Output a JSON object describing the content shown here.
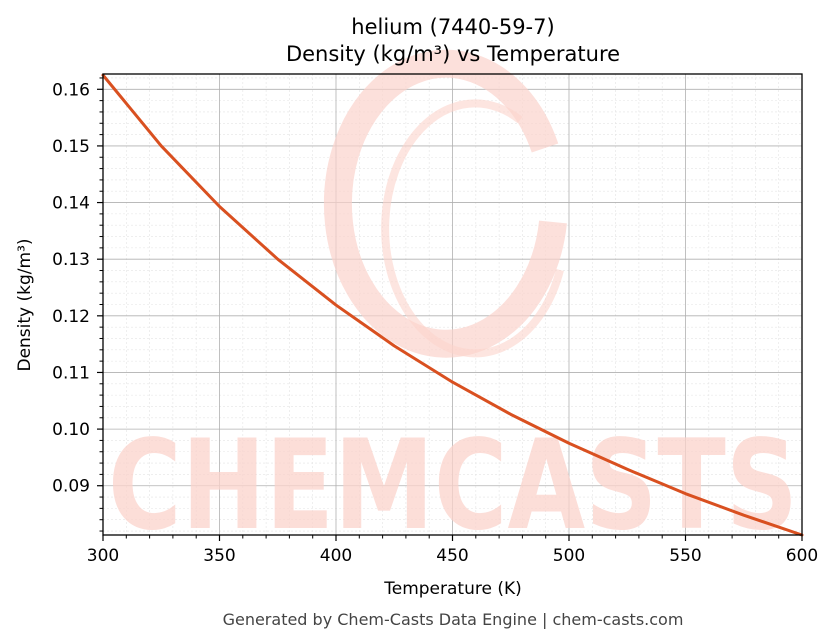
{
  "chart_data": {
    "type": "line",
    "title": "helium (7440-59-7)",
    "subtitle": "Density (kg/m³) vs Temperature",
    "xlabel": "Temperature (K)",
    "ylabel": "Density (kg/m³)",
    "xlim": [
      300,
      600
    ],
    "ylim": [
      0.0813,
      0.1627
    ],
    "x_ticks": [
      "300",
      "350",
      "400",
      "450",
      "500",
      "550",
      "600"
    ],
    "y_ticks": [
      "0.09",
      "0.10",
      "0.11",
      "0.12",
      "0.13",
      "0.14",
      "0.15",
      "0.16"
    ],
    "grid": true,
    "series": [
      {
        "color": "#d95020",
        "x": [
          300,
          325,
          350,
          375,
          400,
          425,
          450,
          475,
          500,
          525,
          550,
          575,
          600
        ],
        "y": [
          0.1625,
          0.15,
          0.1393,
          0.13,
          0.1219,
          0.1147,
          0.1083,
          0.1026,
          0.0975,
          0.0929,
          0.0886,
          0.0848,
          0.0813
        ]
      }
    ]
  },
  "watermark": {
    "text": "CHEMCASTS",
    "color": "#fbd3cc"
  },
  "footer": "Generated by Chem-Casts Data Engine | chem-casts.com"
}
